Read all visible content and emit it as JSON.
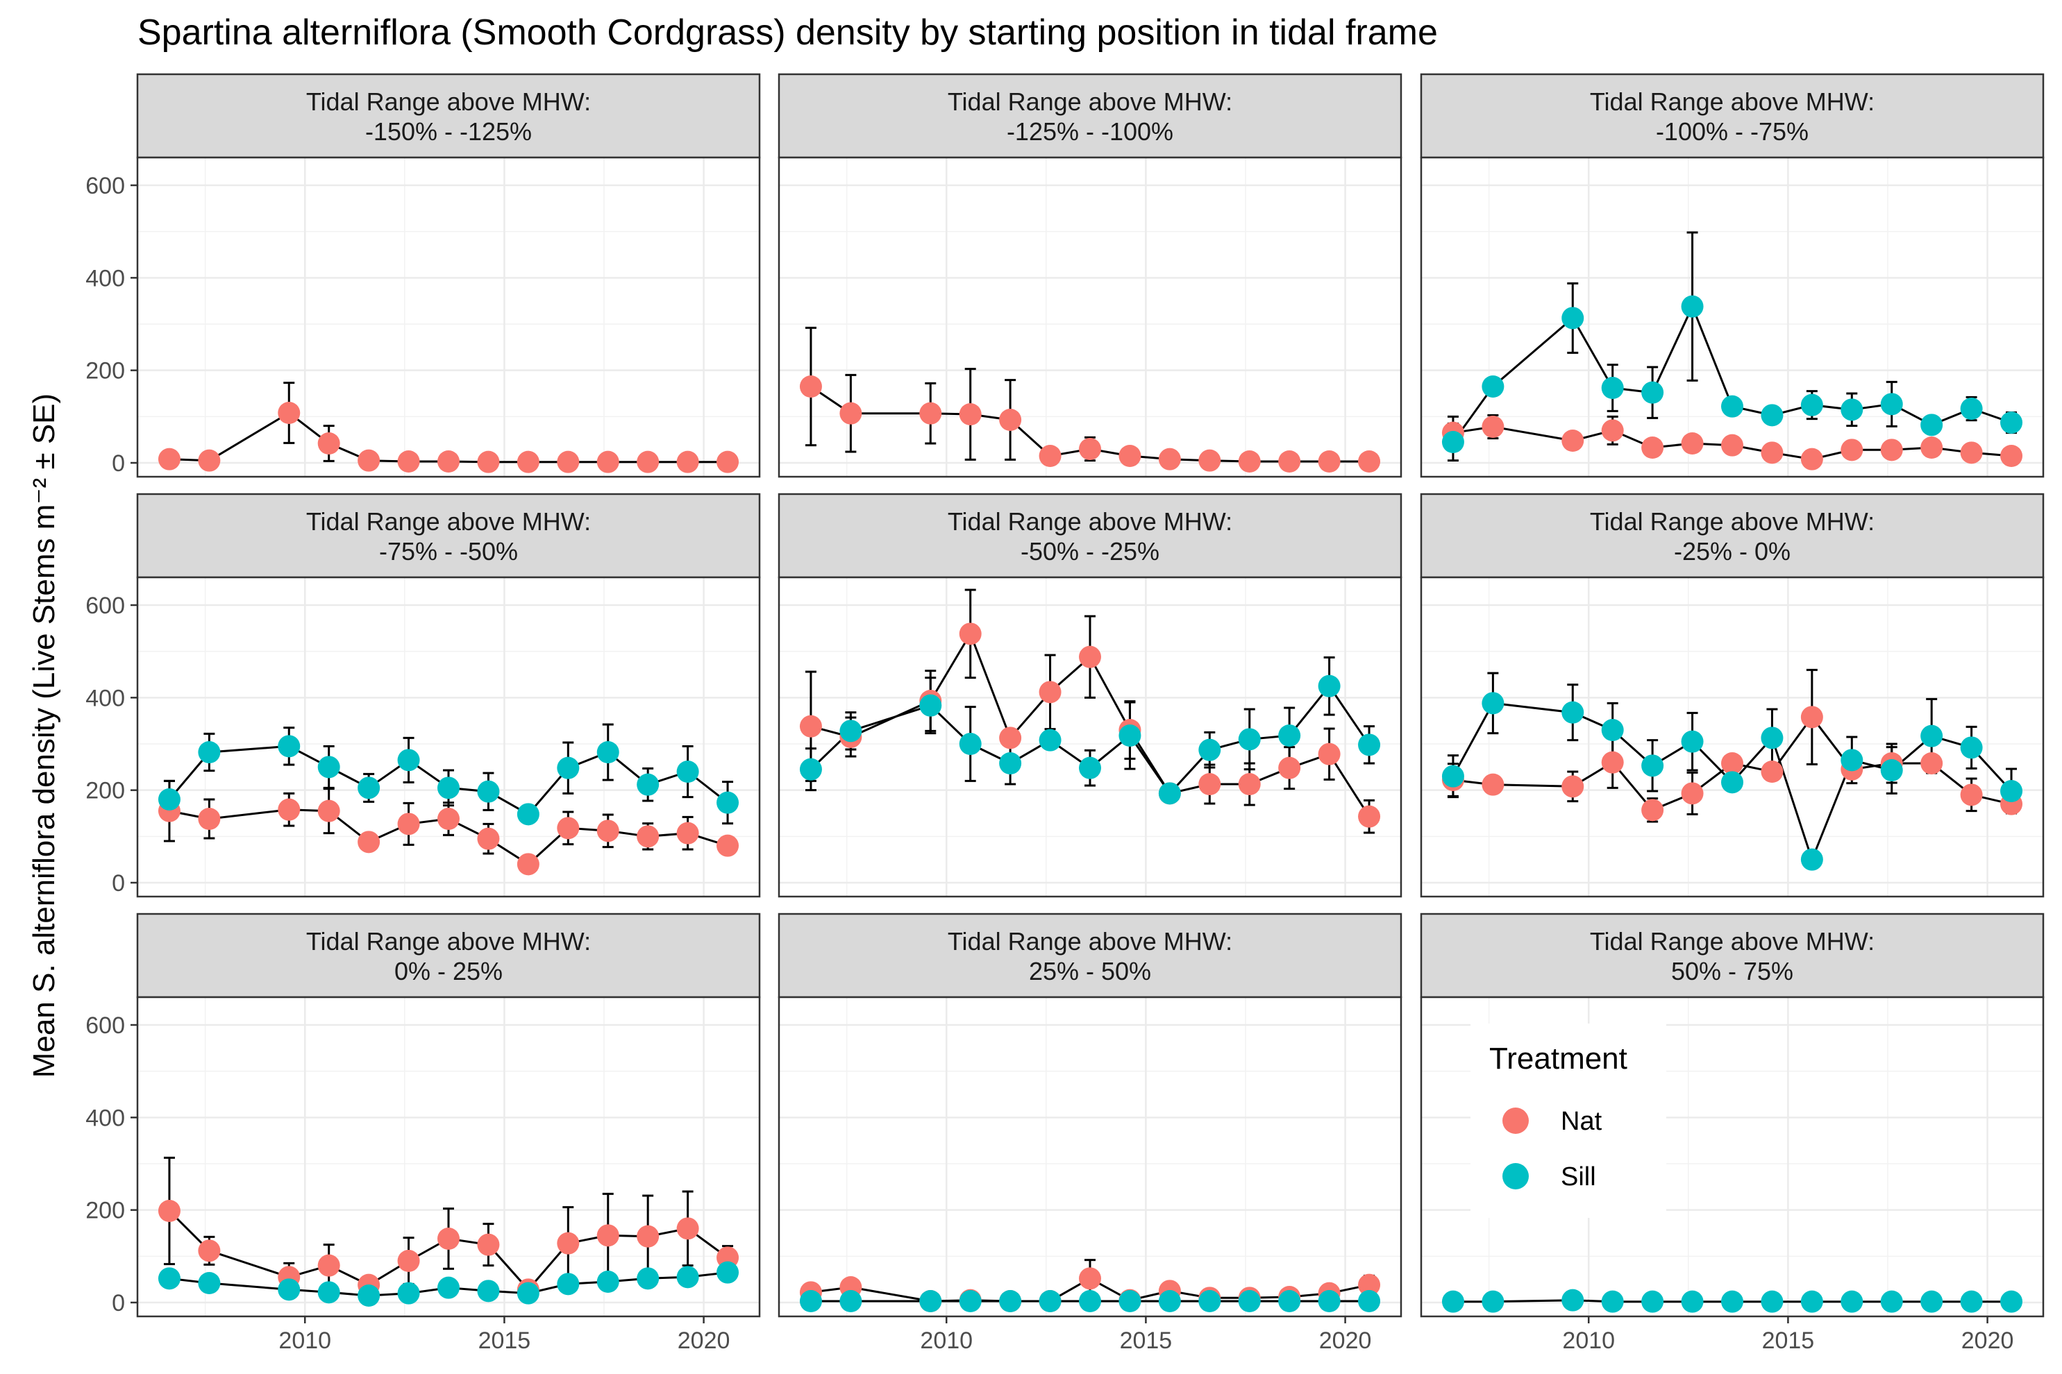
{
  "chart_data": {
    "type": "line",
    "title": "Spartina alterniflora (Smooth Cordgrass) density by starting position in tidal frame",
    "ylabel": "Mean S. alterniflora density (Live Stems m⁻² ± SE)",
    "xlabel": "",
    "ylim": [
      -30,
      660
    ],
    "xlim": [
      2005.8,
      2021.4
    ],
    "yticks": [
      0,
      200,
      400,
      600
    ],
    "xticks": [
      2010,
      2015,
      2020
    ],
    "grid": true,
    "legend": {
      "title": "Treatment",
      "placement": "inside bottom-right facet",
      "entries": [
        {
          "name": "Nat",
          "color": "#F8766D"
        },
        {
          "name": "Sill",
          "color": "#00BFC4"
        }
      ]
    },
    "facet_header_prefix": "Tidal Range above MHW:",
    "facets": [
      {
        "label": "-150%  -  -125%",
        "series": [
          {
            "name": "Nat",
            "x": [
              2006.6,
              2007.6,
              2009.6,
              2010.6,
              2011.6,
              2012.6,
              2013.6,
              2014.6,
              2015.6,
              2016.6,
              2017.6,
              2018.6,
              2019.6,
              2020.6
            ],
            "y": [
              8,
              5,
              108,
              42,
              5,
              3,
              3,
              2,
              2,
              2,
              2,
              2,
              2,
              2
            ],
            "se": [
              0,
              0,
              65,
              38,
              0,
              0,
              0,
              0,
              0,
              0,
              0,
              0,
              0,
              0
            ]
          }
        ]
      },
      {
        "label": "-125%  -  -100%",
        "series": [
          {
            "name": "Nat",
            "x": [
              2006.6,
              2007.6,
              2009.6,
              2010.6,
              2011.6,
              2012.6,
              2013.6,
              2014.6,
              2015.6,
              2016.6,
              2017.6,
              2018.6,
              2019.6,
              2020.6
            ],
            "y": [
              165,
              107,
              107,
              105,
              93,
              15,
              30,
              15,
              8,
              5,
              3,
              3,
              3,
              3
            ],
            "se": [
              127,
              83,
              65,
              98,
              86,
              0,
              25,
              0,
              0,
              0,
              0,
              0,
              0,
              0
            ]
          }
        ]
      },
      {
        "label": "-100%  -  -75%",
        "series": [
          {
            "name": "Nat",
            "x": [
              2006.6,
              2007.6,
              2009.6,
              2010.6,
              2011.6,
              2012.6,
              2013.6,
              2014.6,
              2015.6,
              2016.6,
              2017.6,
              2018.6,
              2019.6,
              2020.6
            ],
            "y": [
              65,
              78,
              48,
              70,
              33,
              42,
              38,
              22,
              8,
              28,
              28,
              33,
              22,
              15
            ],
            "se": [
              35,
              25,
              0,
              30,
              0,
              0,
              0,
              0,
              0,
              0,
              0,
              0,
              0,
              0
            ]
          },
          {
            "name": "Sill",
            "x": [
              2006.6,
              2007.6,
              2009.6,
              2010.6,
              2011.6,
              2012.6,
              2013.6,
              2014.6,
              2015.6,
              2016.6,
              2017.6,
              2018.6,
              2019.6,
              2020.6
            ],
            "y": [
              45,
              165,
              313,
              162,
              152,
              338,
              122,
              103,
              125,
              115,
              127,
              82,
              117,
              87
            ],
            "se": [
              40,
              0,
              75,
              50,
              55,
              160,
              0,
              0,
              30,
              35,
              48,
              0,
              25,
              22
            ]
          }
        ]
      },
      {
        "label": "-75%  -  -50%",
        "series": [
          {
            "name": "Nat",
            "x": [
              2006.6,
              2007.6,
              2009.6,
              2010.6,
              2011.6,
              2012.6,
              2013.6,
              2014.6,
              2015.6,
              2016.6,
              2017.6,
              2018.6,
              2019.6,
              2020.6
            ],
            "y": [
              155,
              138,
              158,
              155,
              88,
              127,
              138,
              95,
              40,
              118,
              112,
              100,
              107,
              80
            ],
            "se": [
              65,
              42,
              35,
              48,
              0,
              45,
              35,
              32,
              0,
              35,
              35,
              28,
              35,
              0
            ]
          },
          {
            "name": "Sill",
            "x": [
              2006.6,
              2007.6,
              2009.6,
              2010.6,
              2011.6,
              2012.6,
              2013.6,
              2014.6,
              2015.6,
              2016.6,
              2017.6,
              2018.6,
              2019.6,
              2020.6
            ],
            "y": [
              180,
              282,
              295,
              250,
              205,
              265,
              205,
              197,
              148,
              248,
              282,
              212,
              240,
              173
            ],
            "se": [
              40,
              40,
              40,
              45,
              30,
              48,
              38,
              40,
              0,
              55,
              60,
              35,
              55,
              45
            ]
          }
        ]
      },
      {
        "label": "-50%  -  -25%",
        "series": [
          {
            "name": "Nat",
            "x": [
              2006.6,
              2007.6,
              2009.6,
              2010.6,
              2011.6,
              2012.6,
              2013.6,
              2014.6,
              2015.6,
              2016.6,
              2017.6,
              2018.6,
              2019.6,
              2020.6
            ],
            "y": [
              338,
              315,
              393,
              538,
              313,
              412,
              488,
              330,
              193,
              213,
              213,
              248,
              278,
              143
            ],
            "se": [
              118,
              42,
              65,
              95,
              0,
              80,
              88,
              62,
              0,
              42,
              45,
              45,
              55,
              35
            ]
          },
          {
            "name": "Sill",
            "x": [
              2006.6,
              2007.6,
              2009.6,
              2010.6,
              2011.6,
              2012.6,
              2013.6,
              2014.6,
              2015.6,
              2016.6,
              2017.6,
              2018.6,
              2019.6,
              2020.6
            ],
            "y": [
              245,
              328,
              383,
              300,
              258,
              308,
              248,
              318,
              193,
              287,
              310,
              318,
              425,
              298
            ],
            "se": [
              45,
              40,
              60,
              80,
              45,
              0,
              38,
              72,
              0,
              38,
              65,
              60,
              62,
              40
            ]
          }
        ]
      },
      {
        "label": "-25%  -  0%",
        "series": [
          {
            "name": "Nat",
            "x": [
              2006.6,
              2007.6,
              2009.6,
              2010.6,
              2011.6,
              2012.6,
              2013.6,
              2014.6,
              2015.6,
              2016.6,
              2017.6,
              2018.6,
              2019.6,
              2020.6
            ],
            "y": [
              222,
              212,
              208,
              260,
              157,
              193,
              258,
              240,
              358,
              245,
              258,
              258,
              190,
              170
            ],
            "se": [
              35,
              0,
              32,
              55,
              25,
              45,
              0,
              0,
              102,
              0,
              42,
              0,
              35,
              0
            ]
          },
          {
            "name": "Sill",
            "x": [
              2006.6,
              2007.6,
              2009.6,
              2010.6,
              2011.6,
              2012.6,
              2013.6,
              2014.6,
              2015.6,
              2016.6,
              2017.6,
              2018.6,
              2019.6,
              2020.6
            ],
            "y": [
              230,
              388,
              368,
              330,
              253,
              305,
              217,
              313,
              50,
              265,
              243,
              317,
              292,
              198
            ],
            "se": [
              45,
              65,
              60,
              58,
              55,
              62,
              0,
              62,
              0,
              50,
              50,
              80,
              45,
              48
            ]
          }
        ]
      },
      {
        "label": "0%  -  25%",
        "series": [
          {
            "name": "Nat",
            "x": [
              2006.6,
              2007.6,
              2009.6,
              2010.6,
              2011.6,
              2012.6,
              2013.6,
              2014.6,
              2015.6,
              2016.6,
              2017.6,
              2018.6,
              2019.6,
              2020.6
            ],
            "y": [
              198,
              112,
              55,
              80,
              38,
              90,
              138,
              125,
              28,
              128,
              145,
              143,
              160,
              97
            ],
            "se": [
              115,
              30,
              30,
              45,
              0,
              50,
              65,
              45,
              0,
              78,
              90,
              88,
              80,
              25
            ]
          },
          {
            "name": "Sill",
            "x": [
              2006.6,
              2007.6,
              2009.6,
              2010.6,
              2011.6,
              2012.6,
              2013.6,
              2014.6,
              2015.6,
              2016.6,
              2017.6,
              2018.6,
              2019.6,
              2020.6
            ],
            "y": [
              52,
              42,
              28,
              22,
              15,
              20,
              32,
              25,
              20,
              40,
              45,
              52,
              55,
              65
            ],
            "se": [
              0,
              0,
              0,
              0,
              0,
              0,
              0,
              0,
              0,
              0,
              0,
              0,
              0,
              0
            ]
          }
        ]
      },
      {
        "label": "25%  -  50%",
        "series": [
          {
            "name": "Nat",
            "x": [
              2006.6,
              2007.6,
              2009.6,
              2010.6,
              2011.6,
              2012.6,
              2013.6,
              2014.6,
              2015.6,
              2016.6,
              2017.6,
              2018.6,
              2019.6,
              2020.6
            ],
            "y": [
              22,
              33,
              3,
              5,
              3,
              3,
              52,
              5,
              25,
              10,
              10,
              12,
              20,
              38
            ],
            "se": [
              0,
              0,
              0,
              0,
              0,
              0,
              40,
              0,
              0,
              0,
              0,
              0,
              0,
              20
            ]
          },
          {
            "name": "Sill",
            "x": [
              2006.6,
              2007.6,
              2009.6,
              2010.6,
              2011.6,
              2012.6,
              2013.6,
              2014.6,
              2015.6,
              2016.6,
              2017.6,
              2018.6,
              2019.6,
              2020.6
            ],
            "y": [
              3,
              3,
              3,
              3,
              3,
              3,
              3,
              3,
              3,
              3,
              3,
              3,
              3,
              3
            ],
            "se": [
              0,
              0,
              0,
              0,
              0,
              0,
              0,
              0,
              0,
              0,
              0,
              0,
              0,
              0
            ]
          }
        ]
      },
      {
        "label": "50%  -  75%",
        "series": [
          {
            "name": "Sill",
            "x": [
              2006.6,
              2007.6,
              2009.6,
              2010.6,
              2011.6,
              2012.6,
              2013.6,
              2014.6,
              2015.6,
              2016.6,
              2017.6,
              2018.6,
              2019.6,
              2020.6
            ],
            "y": [
              2,
              2,
              5,
              2,
              2,
              2,
              2,
              2,
              2,
              2,
              2,
              2,
              2,
              2
            ],
            "se": [
              0,
              0,
              0,
              0,
              0,
              0,
              0,
              0,
              0,
              0,
              0,
              0,
              0,
              0
            ]
          }
        ]
      }
    ]
  }
}
